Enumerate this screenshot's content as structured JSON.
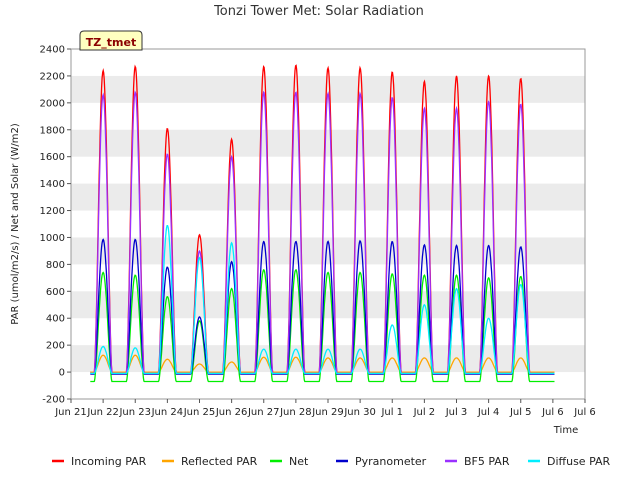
{
  "chart_data": {
    "type": "line",
    "title": "Tonzi Tower Met: Solar Radiation",
    "xlabel": "Time",
    "ylabel": "PAR (umol/m2/s) / Net and Solar (W/m2)",
    "badge": "TZ_tmet",
    "ylim": [
      -200,
      2400
    ],
    "yticks": [
      -200,
      0,
      200,
      400,
      600,
      800,
      1000,
      1200,
      1400,
      1600,
      1800,
      2000,
      2200,
      2400
    ],
    "xlim": [
      0,
      16
    ],
    "xticks": [
      0,
      1,
      2,
      3,
      4,
      5,
      6,
      7,
      8,
      9,
      10,
      11,
      12,
      13,
      14,
      15,
      16
    ],
    "xtick_labels": [
      "Jun 21",
      "Jun 22",
      "Jun 23",
      "Jun 24",
      "Jun 25",
      "Jun 26",
      "Jun 27",
      "Jun 28",
      "Jun 29",
      "Jun 30",
      "Jul 1",
      "Jul 2",
      "Jul 3",
      "Jul 4",
      "Jul 5",
      "Jul 6",
      "Jul 6"
    ],
    "grid": "horizontal bands",
    "legend_position": "bottom",
    "series": [
      {
        "name": "Incoming PAR",
        "color": "#ff0000",
        "night": 0,
        "daily_peaks": [
          2240,
          2270,
          1810,
          1020,
          1730,
          2270,
          2280,
          2260,
          2260,
          2230,
          2160,
          2200,
          2200,
          2180
        ]
      },
      {
        "name": "Reflected PAR",
        "color": "#ffa500",
        "night": 0,
        "daily_peaks": [
          125,
          125,
          95,
          60,
          75,
          110,
          110,
          105,
          105,
          105,
          105,
          105,
          105,
          105
        ]
      },
      {
        "name": "Net",
        "color": "#00ee00",
        "night": -70,
        "daily_peaks": [
          740,
          720,
          560,
          380,
          620,
          760,
          760,
          740,
          740,
          730,
          720,
          720,
          700,
          710
        ]
      },
      {
        "name": "Pyranometer",
        "color": "#0000cc",
        "night": -15,
        "daily_peaks": [
          985,
          985,
          780,
          410,
          820,
          970,
          970,
          970,
          975,
          970,
          945,
          940,
          940,
          930
        ]
      },
      {
        "name": "BF5 PAR",
        "color": "#9a30ff",
        "night": -10,
        "daily_peaks": [
          2060,
          2080,
          1620,
          900,
          1600,
          2080,
          2080,
          2070,
          2070,
          2040,
          1960,
          1960,
          2010,
          1990
        ]
      },
      {
        "name": "Diffuse PAR",
        "color": "#00eeff",
        "night": -10,
        "daily_peaks": [
          190,
          180,
          1090,
          850,
          960,
          170,
          170,
          170,
          170,
          350,
          500,
          620,
          400,
          650
        ]
      }
    ]
  }
}
